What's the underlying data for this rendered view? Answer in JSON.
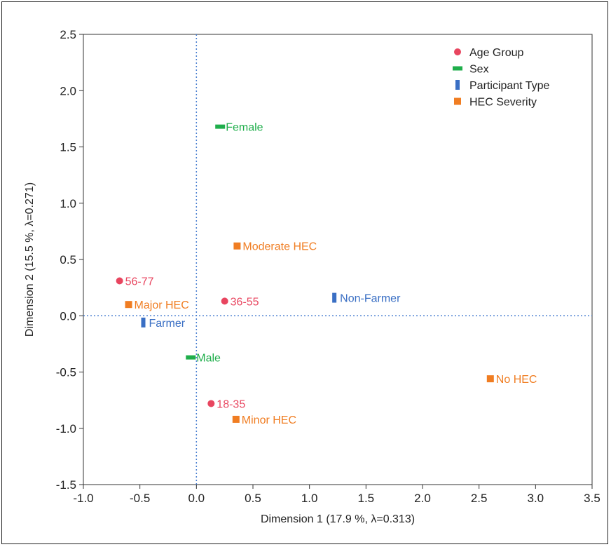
{
  "chart_data": {
    "type": "scatter",
    "xlabel": "Dimension 1  (17.9 %, λ=0.313)",
    "ylabel": "Dimension 2  (15.5 %, λ=0.271)",
    "xlim": [
      -1.0,
      3.5
    ],
    "ylim": [
      -1.5,
      2.5
    ],
    "x_ticks": [
      -1.0,
      -0.5,
      0.0,
      0.5,
      1.0,
      1.5,
      2.0,
      2.5,
      3.0,
      3.5
    ],
    "y_ticks": [
      -1.5,
      -1.0,
      -0.5,
      0.0,
      0.5,
      1.0,
      1.5,
      2.0,
      2.5
    ],
    "x_tick_labels": [
      "-1.0",
      "-0.5",
      "0.0",
      "0.5",
      "1.0",
      "1.5",
      "2.0",
      "2.5",
      "3.0",
      "3.5"
    ],
    "y_tick_labels": [
      "-1.5",
      "-1.0",
      "-0.5",
      "0.0",
      "0.5",
      "1.0",
      "1.5",
      "2.0",
      "2.5"
    ],
    "reference_lines": {
      "x": 0,
      "y": 0,
      "style": "dotted"
    },
    "grid": false,
    "legend_position": "top-right",
    "series": [
      {
        "name": "Age Group",
        "color": "#e8455f",
        "marker": "circle",
        "points": [
          {
            "label": "56-77",
            "x": -0.68,
            "y": 0.31
          },
          {
            "label": "36-55",
            "x": 0.25,
            "y": 0.13
          },
          {
            "label": "18-35",
            "x": 0.13,
            "y": -0.78
          }
        ]
      },
      {
        "name": "Sex",
        "color": "#1fae4b",
        "marker": "hbar",
        "points": [
          {
            "label": "Female",
            "x": 0.21,
            "y": 1.68
          },
          {
            "label": "Male",
            "x": -0.05,
            "y": -0.37
          }
        ]
      },
      {
        "name": "Participant Type",
        "color": "#3a6fc4",
        "marker": "vbar",
        "points": [
          {
            "label": "Non-Farmer",
            "x": 1.22,
            "y": 0.16
          },
          {
            "label": "Farmer",
            "x": -0.47,
            "y": -0.06
          }
        ]
      },
      {
        "name": "HEC Severity",
        "color": "#f07d22",
        "marker": "square",
        "points": [
          {
            "label": "Moderate HEC",
            "x": 0.36,
            "y": 0.62
          },
          {
            "label": "Major HEC",
            "x": -0.6,
            "y": 0.1
          },
          {
            "label": "No HEC",
            "x": 2.6,
            "y": -0.56
          },
          {
            "label": "Minor HEC",
            "x": 0.35,
            "y": -0.92
          }
        ]
      }
    ]
  }
}
